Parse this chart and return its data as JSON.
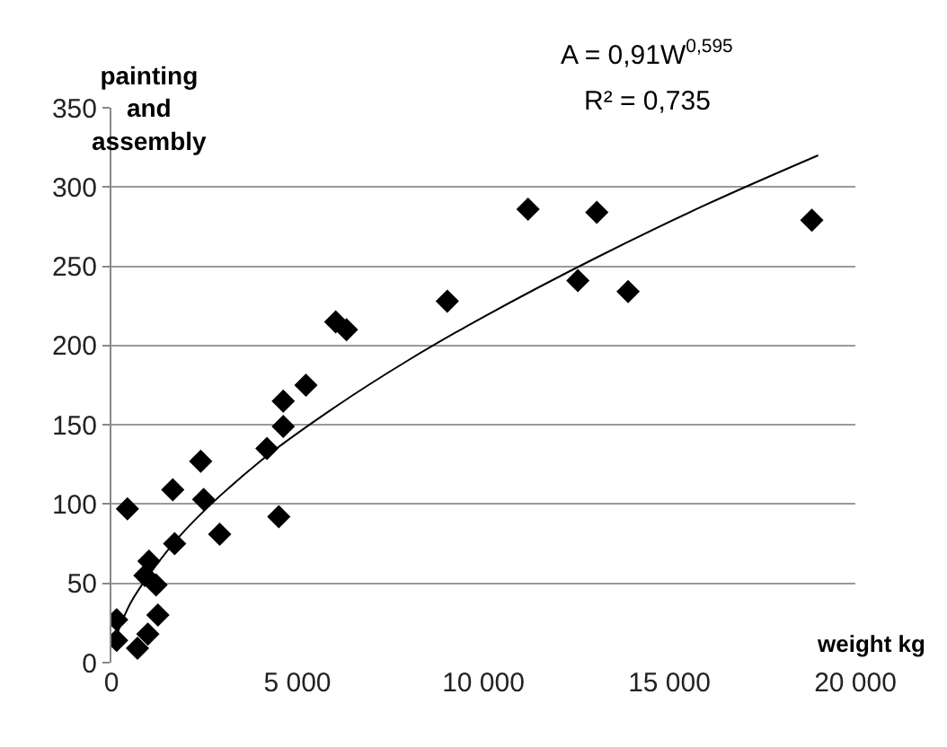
{
  "chart_data": {
    "type": "scatter",
    "xlabel": "weight kg",
    "ylabel": "painting and assembly",
    "annotations": [
      "A = 0,91W$^{0,595}$",
      "R² = 0,735"
    ],
    "series": [
      {
        "color": "#000000",
        "marker": "diamond",
        "x": [
          140,
          140,
          430,
          700,
          980,
          1010,
          900,
          1200,
          1250,
          1650,
          1700,
          2400,
          2480,
          2910,
          4180,
          4500,
          4620,
          4620,
          5230,
          6030,
          6320,
          9030,
          11200,
          13050,
          12540,
          13890,
          18830
        ],
        "values": [
          27,
          14,
          97,
          9,
          18,
          64,
          55,
          49,
          30,
          109,
          75,
          127,
          103,
          81,
          135,
          92,
          149,
          165,
          175,
          215,
          210,
          228,
          286,
          284,
          241,
          234,
          279
        ]
      },
      {
        "type": "line",
        "color": "#000000",
        "marker": "none",
        "x": [
          150,
          500,
          1000,
          2000,
          4000,
          6000,
          8000,
          10000,
          13000,
          16000,
          19000
        ],
        "values": [
          18,
          37,
          55,
          84,
          127,
          161,
          191,
          218,
          255,
          289,
          320
        ]
      }
    ],
    "xlim": [
      0,
      20000
    ],
    "xticks": [
      0,
      {
        "value": 5000,
        "label": "5 000"
      },
      {
        "value": 10000,
        "label": "10 000"
      },
      {
        "value": 15000,
        "label": "15 000"
      },
      {
        "value": 20000,
        "label": "20 000"
      }
    ],
    "ylim": [
      0,
      350
    ],
    "yticks": [
      0,
      50,
      100,
      150,
      200,
      250,
      300,
      350
    ],
    "grid": "y"
  }
}
